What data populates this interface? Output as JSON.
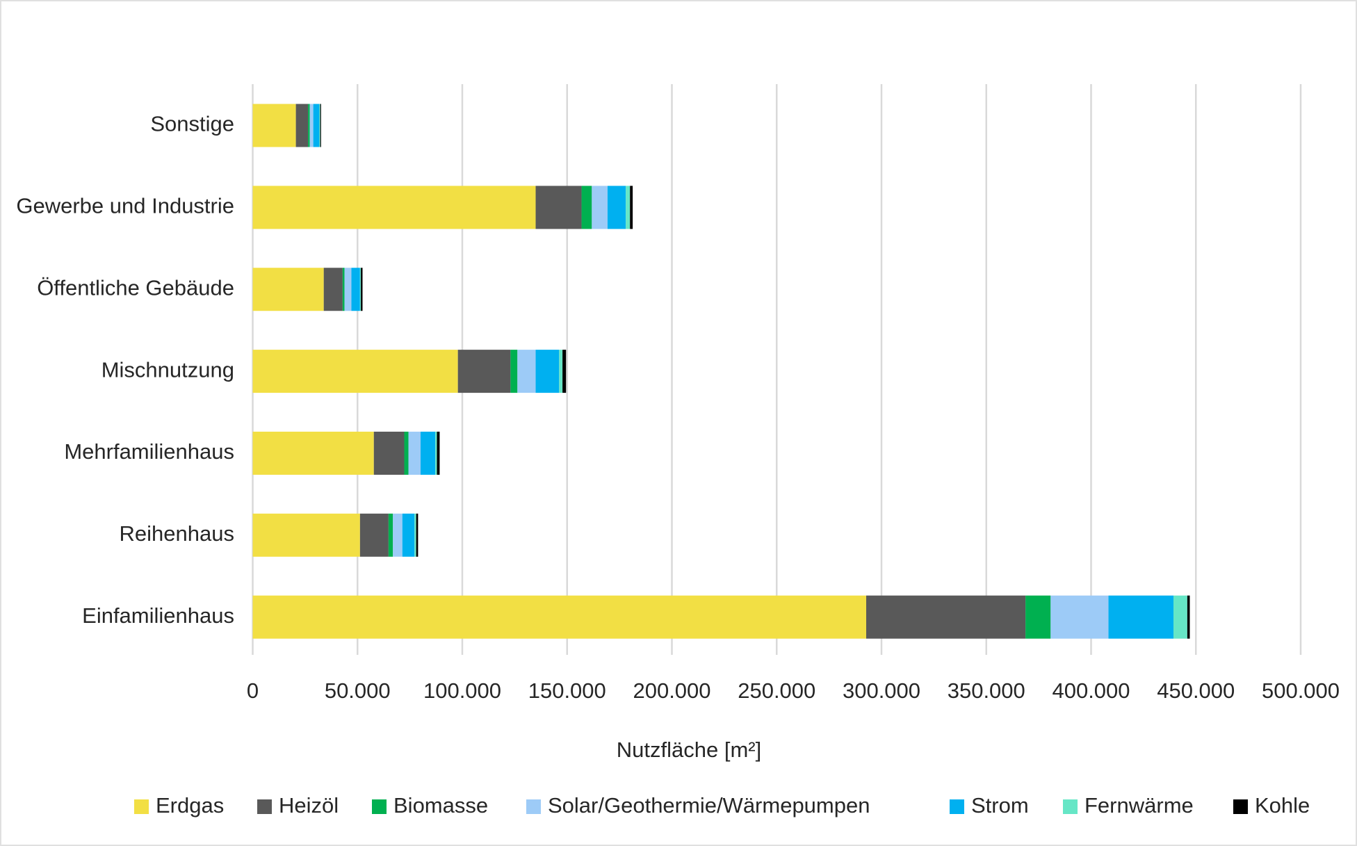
{
  "chart_data": {
    "type": "stacked_barh",
    "xlabel": "Nutzfläche [m²]",
    "categories": [
      "Sonstige",
      "Gewerbe und Industrie",
      "Öffentliche Gebäude",
      "Mischnutzung",
      "Mehrfamilienhaus",
      "Reihenhaus",
      "Einfamilienhaus"
    ],
    "series": [
      {
        "name": "Erdgas",
        "color": "#f2df44",
        "values": [
          20600,
          135000,
          33900,
          97900,
          57800,
          51200,
          292700
        ]
      },
      {
        "name": "Heizöl",
        "color": "#595959",
        "values": [
          5800,
          21900,
          9000,
          25100,
          14500,
          13600,
          76000
        ]
      },
      {
        "name": "Biomasse",
        "color": "#00b050",
        "values": [
          800,
          4900,
          900,
          3300,
          2000,
          2100,
          12000
        ]
      },
      {
        "name": "Solar/Geothermie/Wärmepumpen",
        "color": "#9dcbf7",
        "values": [
          1700,
          7500,
          3300,
          8700,
          5800,
          4500,
          27600
        ]
      },
      {
        "name": "Strom",
        "color": "#00b0f0",
        "values": [
          2900,
          8700,
          4100,
          11200,
          7000,
          5800,
          31000
        ]
      },
      {
        "name": "Fernwärme",
        "color": "#66e6c6",
        "values": [
          400,
          2000,
          400,
          1600,
          800,
          800,
          6600
        ]
      },
      {
        "name": "Kohle",
        "color": "#000000",
        "values": [
          400,
          1300,
          800,
          1700,
          1300,
          900,
          1200
        ]
      }
    ],
    "xlim": [
      0,
      500000
    ],
    "xticks": [
      0,
      {
        "value": 50000,
        "label": "50.000"
      },
      {
        "value": 100000,
        "label": "100.000"
      },
      {
        "value": 150000,
        "label": "150.000"
      },
      {
        "value": 200000,
        "label": "200.000"
      },
      {
        "value": 250000,
        "label": "250.000"
      },
      {
        "value": 300000,
        "label": "300.000"
      },
      {
        "value": 350000,
        "label": "350.000"
      },
      {
        "value": 400000,
        "label": "400.000"
      },
      {
        "value": 450000,
        "label": "450.000"
      },
      {
        "value": 500000,
        "label": "500.000"
      }
    ],
    "grid": true,
    "legend": "bottom"
  }
}
